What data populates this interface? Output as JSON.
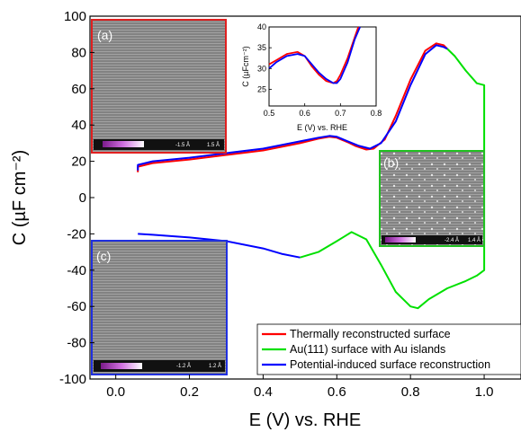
{
  "chart_data": {
    "type": "line",
    "xlabel": "E (V) vs. RHE",
    "ylabel": "C (µF cm⁻²)",
    "xlim": [
      -0.07,
      1.1
    ],
    "ylim": [
      -100,
      100
    ],
    "xticks": [
      0.0,
      0.2,
      0.4,
      0.6,
      0.8,
      1.0
    ],
    "xtick_labels": [
      "0.0",
      "0.2",
      "0.4",
      "0.6",
      "0.8",
      "1.0"
    ],
    "yticks": [
      -100,
      -80,
      -60,
      -40,
      -20,
      0,
      20,
      40,
      60,
      80,
      100
    ],
    "ytick_labels": [
      "-100",
      "-80",
      "-60",
      "-40",
      "-20",
      "0",
      "20",
      "40",
      "60",
      "80",
      "100"
    ],
    "legend_position": "bottom-right",
    "series": [
      {
        "name": "Thermally reconstructed surface",
        "color": "#ff0000",
        "x": [
          0.06,
          0.06,
          0.1,
          0.2,
          0.3,
          0.4,
          0.5,
          0.55,
          0.58,
          0.6,
          0.63,
          0.65,
          0.68,
          0.7,
          0.73,
          0.76,
          0.8,
          0.84,
          0.87,
          0.89,
          0.9
        ],
        "y": [
          14,
          17,
          19,
          21,
          23.5,
          26,
          30,
          32.5,
          33.5,
          33,
          30.5,
          28.5,
          26.5,
          27,
          32,
          45,
          65,
          81,
          85,
          84,
          82
        ]
      },
      {
        "name": "Au(111) surface with Au islands",
        "color": "#00e000",
        "x": [
          0.5,
          0.55,
          0.6,
          0.64,
          0.68,
          0.72,
          0.76,
          0.8,
          0.82,
          0.85,
          0.9,
          0.95,
          0.98,
          1.0,
          1.0,
          0.98,
          0.95,
          0.92,
          0.9
        ],
        "y": [
          -33,
          -30,
          -24,
          -19,
          -23,
          -37,
          -52,
          -60,
          -61,
          -56,
          -50,
          -46,
          -43,
          -40,
          62,
          63,
          70,
          78,
          82
        ]
      },
      {
        "name": "Potential-induced surface reconstruction",
        "color": "#0000ff",
        "x": [
          0.06,
          0.06,
          0.1,
          0.2,
          0.3,
          0.4,
          0.5,
          0.55,
          0.58,
          0.6,
          0.63,
          0.66,
          0.69,
          0.72,
          0.76,
          0.8,
          0.84,
          0.87,
          0.89,
          0.9,
          0.06,
          0.1,
          0.2,
          0.3,
          0.4,
          0.45,
          0.5
        ],
        "y": [
          15,
          18,
          20,
          22,
          24.5,
          27,
          31,
          33,
          34,
          33.5,
          31,
          28.5,
          27,
          30,
          42,
          62,
          79,
          84,
          83,
          82,
          -20,
          -20.5,
          -22,
          -24,
          -28,
          -31,
          -33
        ]
      }
    ],
    "inset": {
      "xlabel": "E (V) vs. RHE",
      "ylabel": "C (µFcm⁻²)",
      "xlim": [
        0.5,
        0.8
      ],
      "ylim": [
        21,
        40
      ],
      "xtick_labels": [
        "0.5",
        "0.6",
        "0.7",
        "0.8"
      ],
      "ytick_labels": [
        "25",
        "30",
        "35",
        "40"
      ],
      "series": [
        {
          "name": "Thermally reconstructed surface",
          "color": "#ff0000",
          "x": [
            0.5,
            0.52,
            0.55,
            0.58,
            0.6,
            0.62,
            0.64,
            0.66,
            0.68,
            0.69,
            0.7,
            0.72,
            0.74,
            0.75
          ],
          "y": [
            31,
            32,
            33.5,
            34,
            33,
            30.5,
            28.5,
            27,
            26.5,
            27,
            28.5,
            32.5,
            37.5,
            40
          ]
        },
        {
          "name": "Potential-induced surface reconstruction",
          "color": "#0000ff",
          "x": [
            0.5,
            0.52,
            0.55,
            0.58,
            0.6,
            0.62,
            0.64,
            0.66,
            0.68,
            0.69,
            0.7,
            0.72,
            0.74,
            0.755
          ],
          "y": [
            30,
            31.5,
            33,
            33.5,
            33,
            31,
            29,
            27.5,
            26.5,
            26.5,
            27.5,
            31.5,
            37,
            40
          ]
        }
      ]
    },
    "panels": [
      {
        "label": "(a)",
        "border_color": "#e02020",
        "scale_left": "-1.5 Å",
        "scale_right": "1.5 Å"
      },
      {
        "label": "(b)",
        "border_color": "#20c020",
        "scale_left": "-2.4 Å",
        "scale_right": "1.4 Å"
      },
      {
        "label": "(c)",
        "border_color": "#2030e0",
        "scale_left": "-1.2 Å",
        "scale_right": "1.2 Å"
      }
    ]
  }
}
